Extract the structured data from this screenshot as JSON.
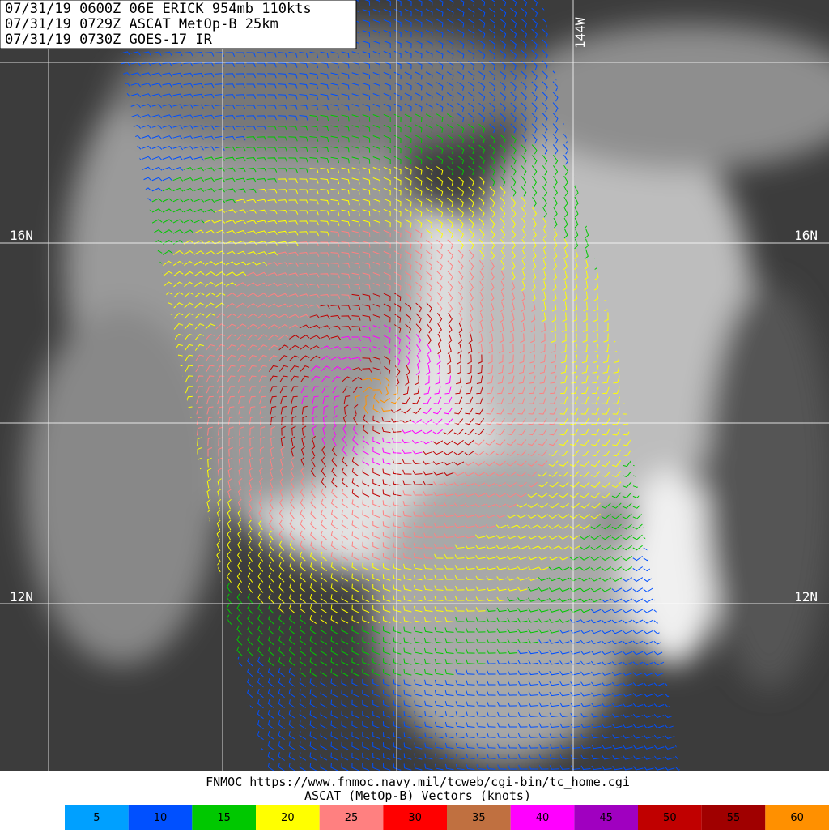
{
  "header": {
    "lines": [
      "07/31/19 0600Z  06E ERICK 954mb 110kts",
      "07/31/19 0729Z  ASCAT MetOp-B 25km",
      "07/31/19 0730Z  GOES-17 IR"
    ]
  },
  "map_labels": {
    "lon": "144W",
    "lat": [
      "16N",
      "12N"
    ]
  },
  "footer": {
    "source": "FNMOC https://www.fnmoc.navy.mil/tcweb/cgi-bin/tc_home.cgi",
    "legend_title": "ASCAT (MetOp-B) Vectors (knots)"
  },
  "legend": {
    "items": [
      {
        "label": "5",
        "color": "#00a0ff"
      },
      {
        "label": "10",
        "color": "#0050ff"
      },
      {
        "label": "15",
        "color": "#00c800"
      },
      {
        "label": "20",
        "color": "#ffff00"
      },
      {
        "label": "25",
        "color": "#ff8080"
      },
      {
        "label": "30",
        "color": "#ff0000"
      },
      {
        "label": "35",
        "color": "#c07040"
      },
      {
        "label": "40",
        "color": "#ff00ff"
      },
      {
        "label": "45",
        "color": "#a000c0"
      },
      {
        "label": "50",
        "color": "#c00000"
      },
      {
        "label": "55",
        "color": "#a00000"
      },
      {
        "label": "60",
        "color": "#ff9000"
      }
    ]
  }
}
